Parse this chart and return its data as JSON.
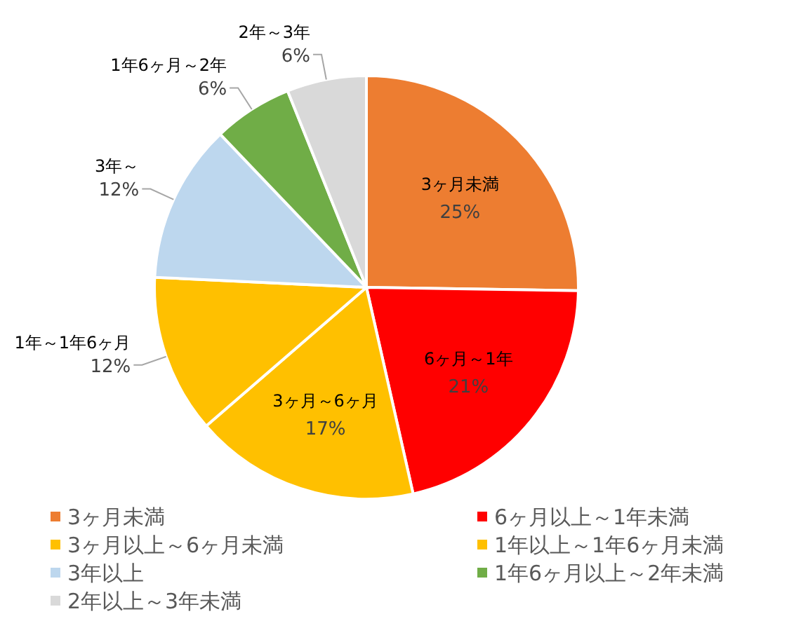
{
  "chart_data": {
    "type": "pie",
    "categories": [
      "3ヶ月未満",
      "6ヶ月以上～1年未満",
      "3ヶ月以上～6ヶ月未満",
      "1年以上～1年6ヶ月未満",
      "3年以上",
      "1年6ヶ月以上～2年未満",
      "2年以上～3年未満"
    ],
    "values": [
      25,
      21,
      17,
      12,
      12,
      6,
      6
    ],
    "colors": [
      "#ed7d31",
      "#ff0000",
      "#ffc000",
      "#ffc000",
      "#bdd7ee",
      "#70ad47",
      "#d9d9d9"
    ],
    "value_labels": [
      "25%",
      "21%",
      "17%",
      "12%",
      "12%",
      "6%",
      "6%"
    ],
    "annotations": [
      "3ヶ月未満",
      "6ヶ月～1年",
      "3ヶ月～6ヶ月",
      "1年～1年6ヶ月",
      "3年～",
      "1年6ヶ月～2年",
      "2年～3年"
    ],
    "legend": "bottom"
  }
}
